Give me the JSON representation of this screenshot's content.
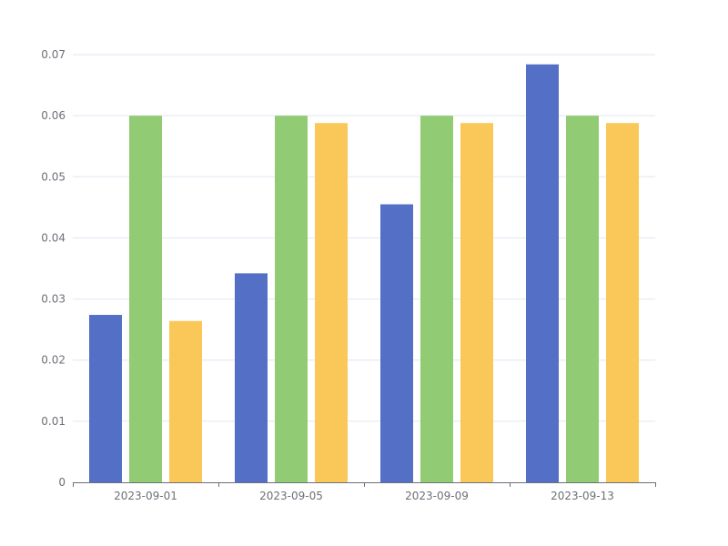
{
  "chart_data": {
    "type": "bar",
    "title": "",
    "xlabel": "",
    "ylabel": "",
    "categories": [
      "2023-09-01",
      "2023-09-05",
      "2023-09-09",
      "2023-09-13"
    ],
    "series": [
      {
        "color": "#5470c6",
        "values": [
          0.0274,
          0.0342,
          0.0455,
          0.0684
        ]
      },
      {
        "color": "#91cc75",
        "values": [
          0.06,
          0.06,
          0.06,
          0.06
        ]
      },
      {
        "color": "#fac858",
        "values": [
          0.0264,
          0.0588,
          0.0588,
          0.0588
        ]
      }
    ],
    "ylim": [
      0,
      0.07
    ],
    "yticks": [
      "0",
      "0.01",
      "0.02",
      "0.03",
      "0.04",
      "0.05",
      "0.06",
      "0.07"
    ],
    "grid": true,
    "legend": "none"
  }
}
